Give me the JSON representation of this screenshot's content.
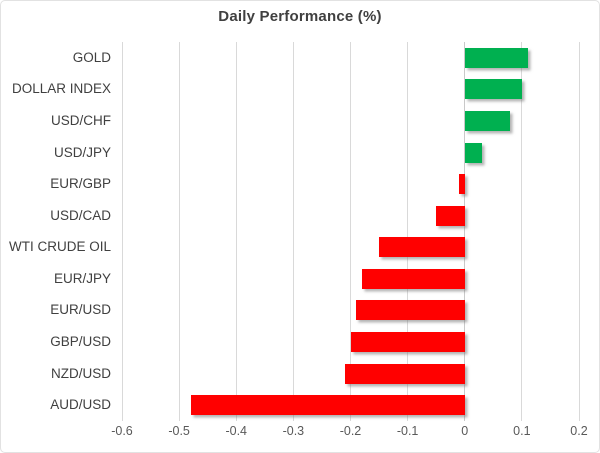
{
  "chart_data": {
    "type": "bar",
    "orientation": "horizontal",
    "title": "Daily Performance (%)",
    "categories": [
      "GOLD",
      "DOLLAR INDEX",
      "USD/CHF",
      "USD/JPY",
      "EUR/GBP",
      "USD/CAD",
      "WTI CRUDE OIL",
      "EUR/JPY",
      "EUR/USD",
      "GBP/USD",
      "NZD/USD",
      "AUD/USD"
    ],
    "values": [
      0.11,
      0.1,
      0.08,
      0.03,
      -0.01,
      -0.05,
      -0.15,
      -0.18,
      -0.19,
      -0.2,
      -0.21,
      -0.48
    ],
    "xlim": [
      -0.6,
      0.2
    ],
    "xticks": [
      -0.6,
      -0.5,
      -0.4,
      -0.3,
      -0.2,
      -0.1,
      0,
      0.1,
      0.2
    ],
    "xtick_labels": [
      "-0.6",
      "-0.5",
      "-0.4",
      "-0.3",
      "-0.2",
      "-0.1",
      "0",
      "0.1",
      "0.2"
    ],
    "grid": true,
    "legend": false,
    "colors": {
      "positive_bar": "#00B050",
      "negative_bar": "#FF0000",
      "gridline": "#D9D9D9",
      "zero_line": "#C9C9C9",
      "title_text": "#404040",
      "category_text": "#404040",
      "tick_text": "#595959"
    }
  }
}
